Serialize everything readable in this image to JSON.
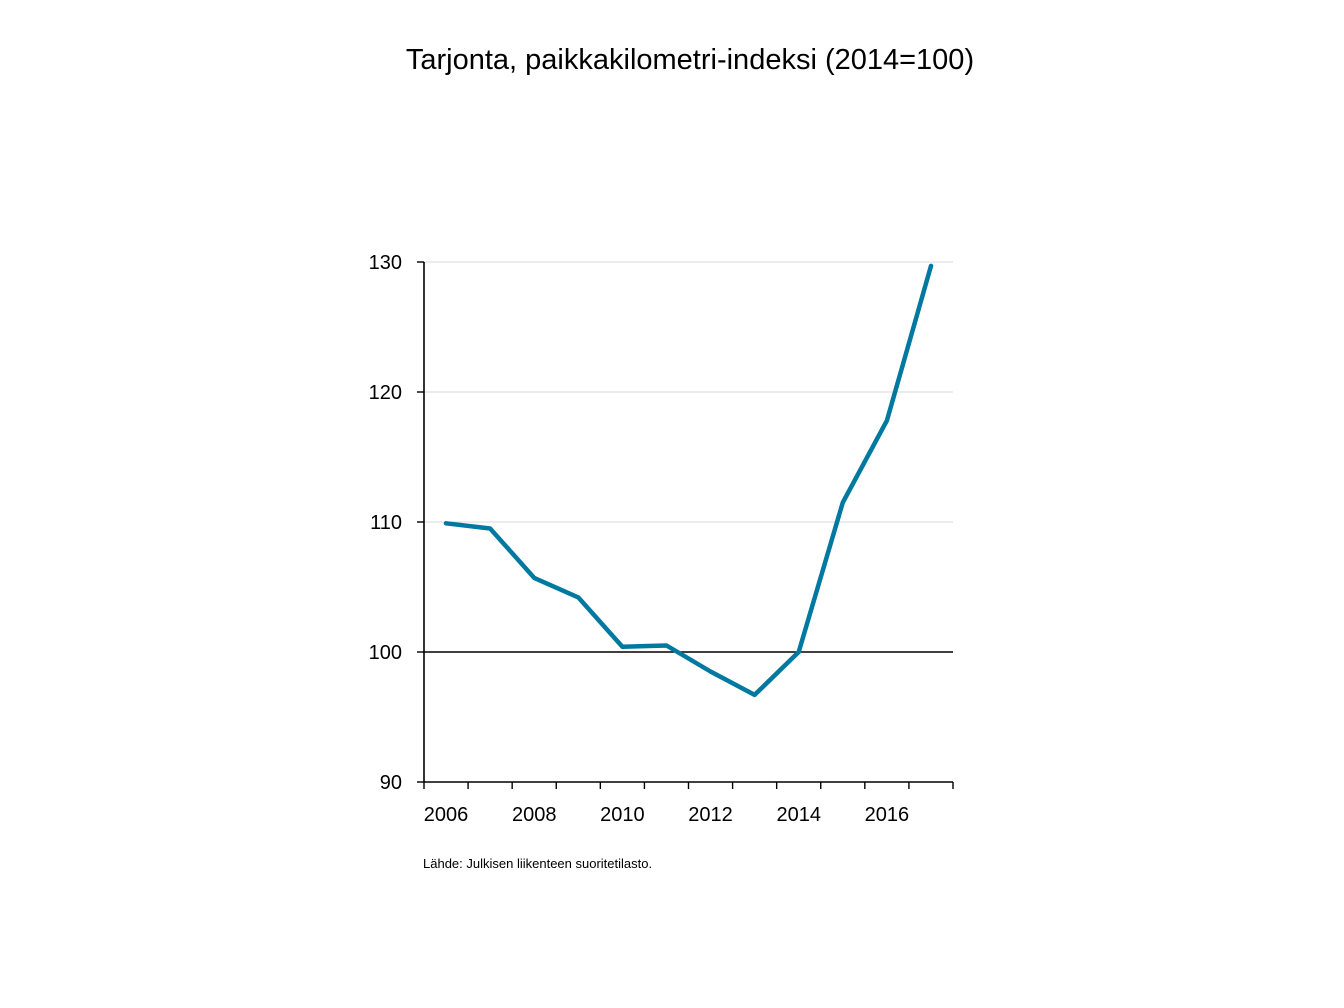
{
  "chart_data": {
    "type": "line",
    "title": "Tarjonta, paikkakilometri-indeksi (2014=100)",
    "xlabel": "",
    "ylabel": "",
    "ylim": [
      90,
      130
    ],
    "yticks": [
      90,
      100,
      110,
      120,
      130
    ],
    "xlim": [
      2005.5,
      2017.5
    ],
    "xticks": [
      2006,
      2008,
      2010,
      2012,
      2014,
      2016
    ],
    "reference_line": 100,
    "grid": "horizontal",
    "series": [
      {
        "color": "#0079A0",
        "x": [
          2006,
          2007,
          2008,
          2009,
          2010,
          2011,
          2012,
          2013,
          2014,
          2015,
          2016,
          2017
        ],
        "values": [
          109.9,
          109.5,
          105.7,
          104.2,
          100.4,
          100.5,
          98.5,
          96.7,
          100.0,
          111.5,
          117.8,
          129.7
        ]
      }
    ]
  },
  "footer": {
    "source": "Lähde: Julkisen liikenteen suoritetilasto."
  },
  "colors": {
    "line": "#0079A0",
    "gridline": "#D9D9D9",
    "axis": "#000000"
  }
}
